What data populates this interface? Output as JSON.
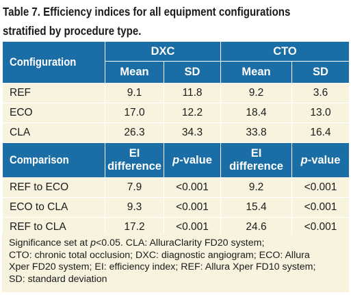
{
  "title": {
    "line1": "Table 7. Efficiency indices for all equipment configurations",
    "line2": "stratified by procedure type."
  },
  "header": {
    "configuration": "Configuration",
    "dxc": "DXC",
    "cto": "CTO",
    "mean": "Mean",
    "sd": "SD"
  },
  "config_rows": [
    {
      "label": "REF",
      "dxc_mean": "9.1",
      "dxc_sd": "11.8",
      "cto_mean": "9.2",
      "cto_sd": "3.6"
    },
    {
      "label": "ECO",
      "dxc_mean": "17.0",
      "dxc_sd": "12.2",
      "cto_mean": "18.4",
      "cto_sd": "13.0"
    },
    {
      "label": "CLA",
      "dxc_mean": "26.3",
      "dxc_sd": "34.3",
      "cto_mean": "33.8",
      "cto_sd": "16.4"
    }
  ],
  "comparison_header": {
    "comparison": "Comparison",
    "ei_line1": "EI",
    "ei_line2": "difference",
    "p_italic": "p",
    "p_rest": "-value"
  },
  "comparison_rows": [
    {
      "label": "REF to ECO",
      "dxc_ei": "7.9",
      "dxc_p": "<0.001",
      "cto_ei": "9.2",
      "cto_p": "<0.001"
    },
    {
      "label": "ECO to CLA",
      "dxc_ei": "9.3",
      "dxc_p": "<0.001",
      "cto_ei": "15.4",
      "cto_p": "<0.001"
    },
    {
      "label": "REF to CLA",
      "dxc_ei": "17.2",
      "dxc_p": "<0.001",
      "cto_ei": "24.6",
      "cto_p": "<0.001"
    }
  ],
  "footnote": {
    "pre": "Significance set at ",
    "p_italic": "p",
    "line1_rest": "<0.05. CLA: AlluraClarity FD20 system;",
    "line2": "CTO: chronic total occlusion; DXC: diagnostic angiogram; ECO: Allura",
    "line3": "Xper FD20 system; EI: efficiency index; REF: Allura Xper FD10 system;",
    "line4": "SD: standard deviation"
  }
}
